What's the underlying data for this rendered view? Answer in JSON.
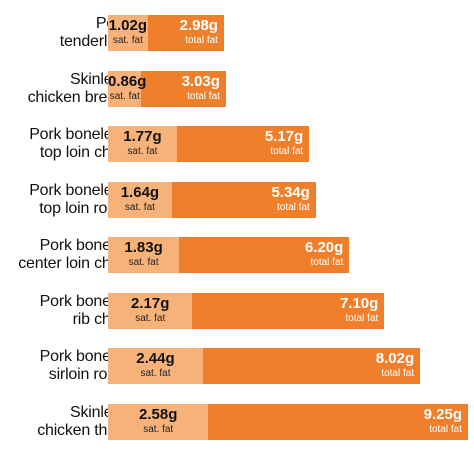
{
  "chart_data": {
    "type": "bar",
    "orientation": "horizontal",
    "stacked": true,
    "categories": [
      "Pork tenderloin",
      "Skinless chicken breast",
      "Pork boneless top loin chop",
      "Pork boneless top loin roast",
      "Pork bone-in center loin chop",
      "Pork bone-in rib chop",
      "Pork bone-in sirloin roast",
      "Skinless chicken thigh"
    ],
    "category_lines": [
      [
        "Pork",
        "tenderloin"
      ],
      [
        "Skinless",
        "chicken breast"
      ],
      [
        "Pork boneless",
        "top loin chop"
      ],
      [
        "Pork boneless",
        "top loin roast"
      ],
      [
        "Pork bone-in",
        "center loin chop"
      ],
      [
        "Pork bone-in",
        "rib chop"
      ],
      [
        "Pork bone-in",
        "sirloin roast"
      ],
      [
        "Skinless",
        "chicken thigh"
      ]
    ],
    "series": [
      {
        "name": "sat. fat",
        "values": [
          1.02,
          0.86,
          1.77,
          1.64,
          1.83,
          2.17,
          2.44,
          2.58
        ],
        "labels": [
          "1.02g",
          "0.86g",
          "1.77g",
          "1.64g",
          "1.83g",
          "2.17g",
          "2.44g",
          "2.58g"
        ],
        "color": "#f7b27a"
      },
      {
        "name": "total fat",
        "values": [
          2.98,
          3.03,
          5.17,
          5.34,
          6.2,
          7.1,
          8.02,
          9.25
        ],
        "labels": [
          "2.98g",
          "3.03g",
          "5.17g",
          "5.34g",
          "6.20g",
          "7.10g",
          "8.02g",
          "9.25g"
        ],
        "color": "#f07f2c"
      }
    ],
    "title": "",
    "xlabel": "",
    "ylabel": "",
    "grid": false,
    "legend": "none"
  }
}
